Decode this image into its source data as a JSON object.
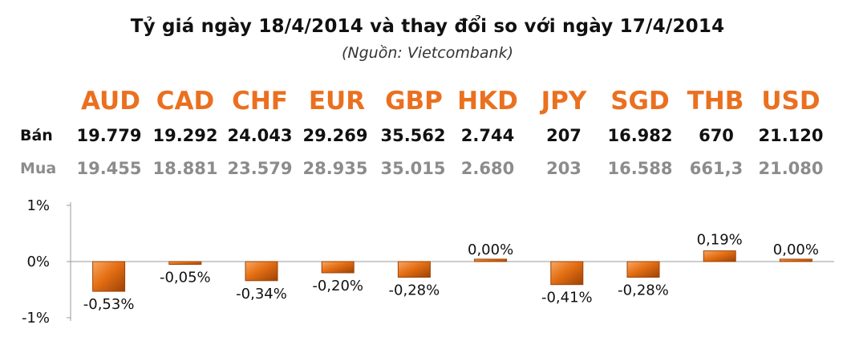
{
  "header": {
    "title": "Tỷ giá ngày 18/4/2014 và thay đổi so với ngày 17/4/2014",
    "source": "(Nguồn: Vietcombank)"
  },
  "table": {
    "sell_label": "Bán",
    "buy_label": "Mua",
    "currencies": [
      "AUD",
      "CAD",
      "CHF",
      "EUR",
      "GBP",
      "HKD",
      "JPY",
      "SGD",
      "THB",
      "USD"
    ],
    "sell": [
      "19.779",
      "19.292",
      "24.043",
      "29.269",
      "35.562",
      "2.744",
      "207",
      "16.982",
      "670",
      "21.120"
    ],
    "buy": [
      "19.455",
      "18.881",
      "23.579",
      "28.935",
      "35.015",
      "2.680",
      "203",
      "16.588",
      "661,3",
      "21.080"
    ]
  },
  "colors": {
    "currency_code": "#ea7020",
    "bar": "#e56f14",
    "bar_highlight": "#f7a864",
    "bar_shadow": "#9c4205",
    "buy_text": "#8c8c8c"
  },
  "chart_data": {
    "type": "bar",
    "categories": [
      "AUD",
      "CAD",
      "CHF",
      "EUR",
      "GBP",
      "HKD",
      "JPY",
      "SGD",
      "THB",
      "USD"
    ],
    "values": [
      -0.53,
      -0.05,
      -0.34,
      -0.2,
      -0.28,
      0.0,
      -0.41,
      -0.28,
      0.19,
      0.0
    ],
    "data_labels": [
      "-0,53%",
      "-0,05%",
      "-0,34%",
      "-0,20%",
      "-0,28%",
      "0,00%",
      "-0,41%",
      "-0,28%",
      "0,19%",
      "0,00%"
    ],
    "ylim": [
      -1,
      1
    ],
    "yticks": [
      1,
      0,
      -1
    ],
    "ytick_labels": [
      "1%",
      "0%",
      "-1%"
    ],
    "grid": false
  }
}
